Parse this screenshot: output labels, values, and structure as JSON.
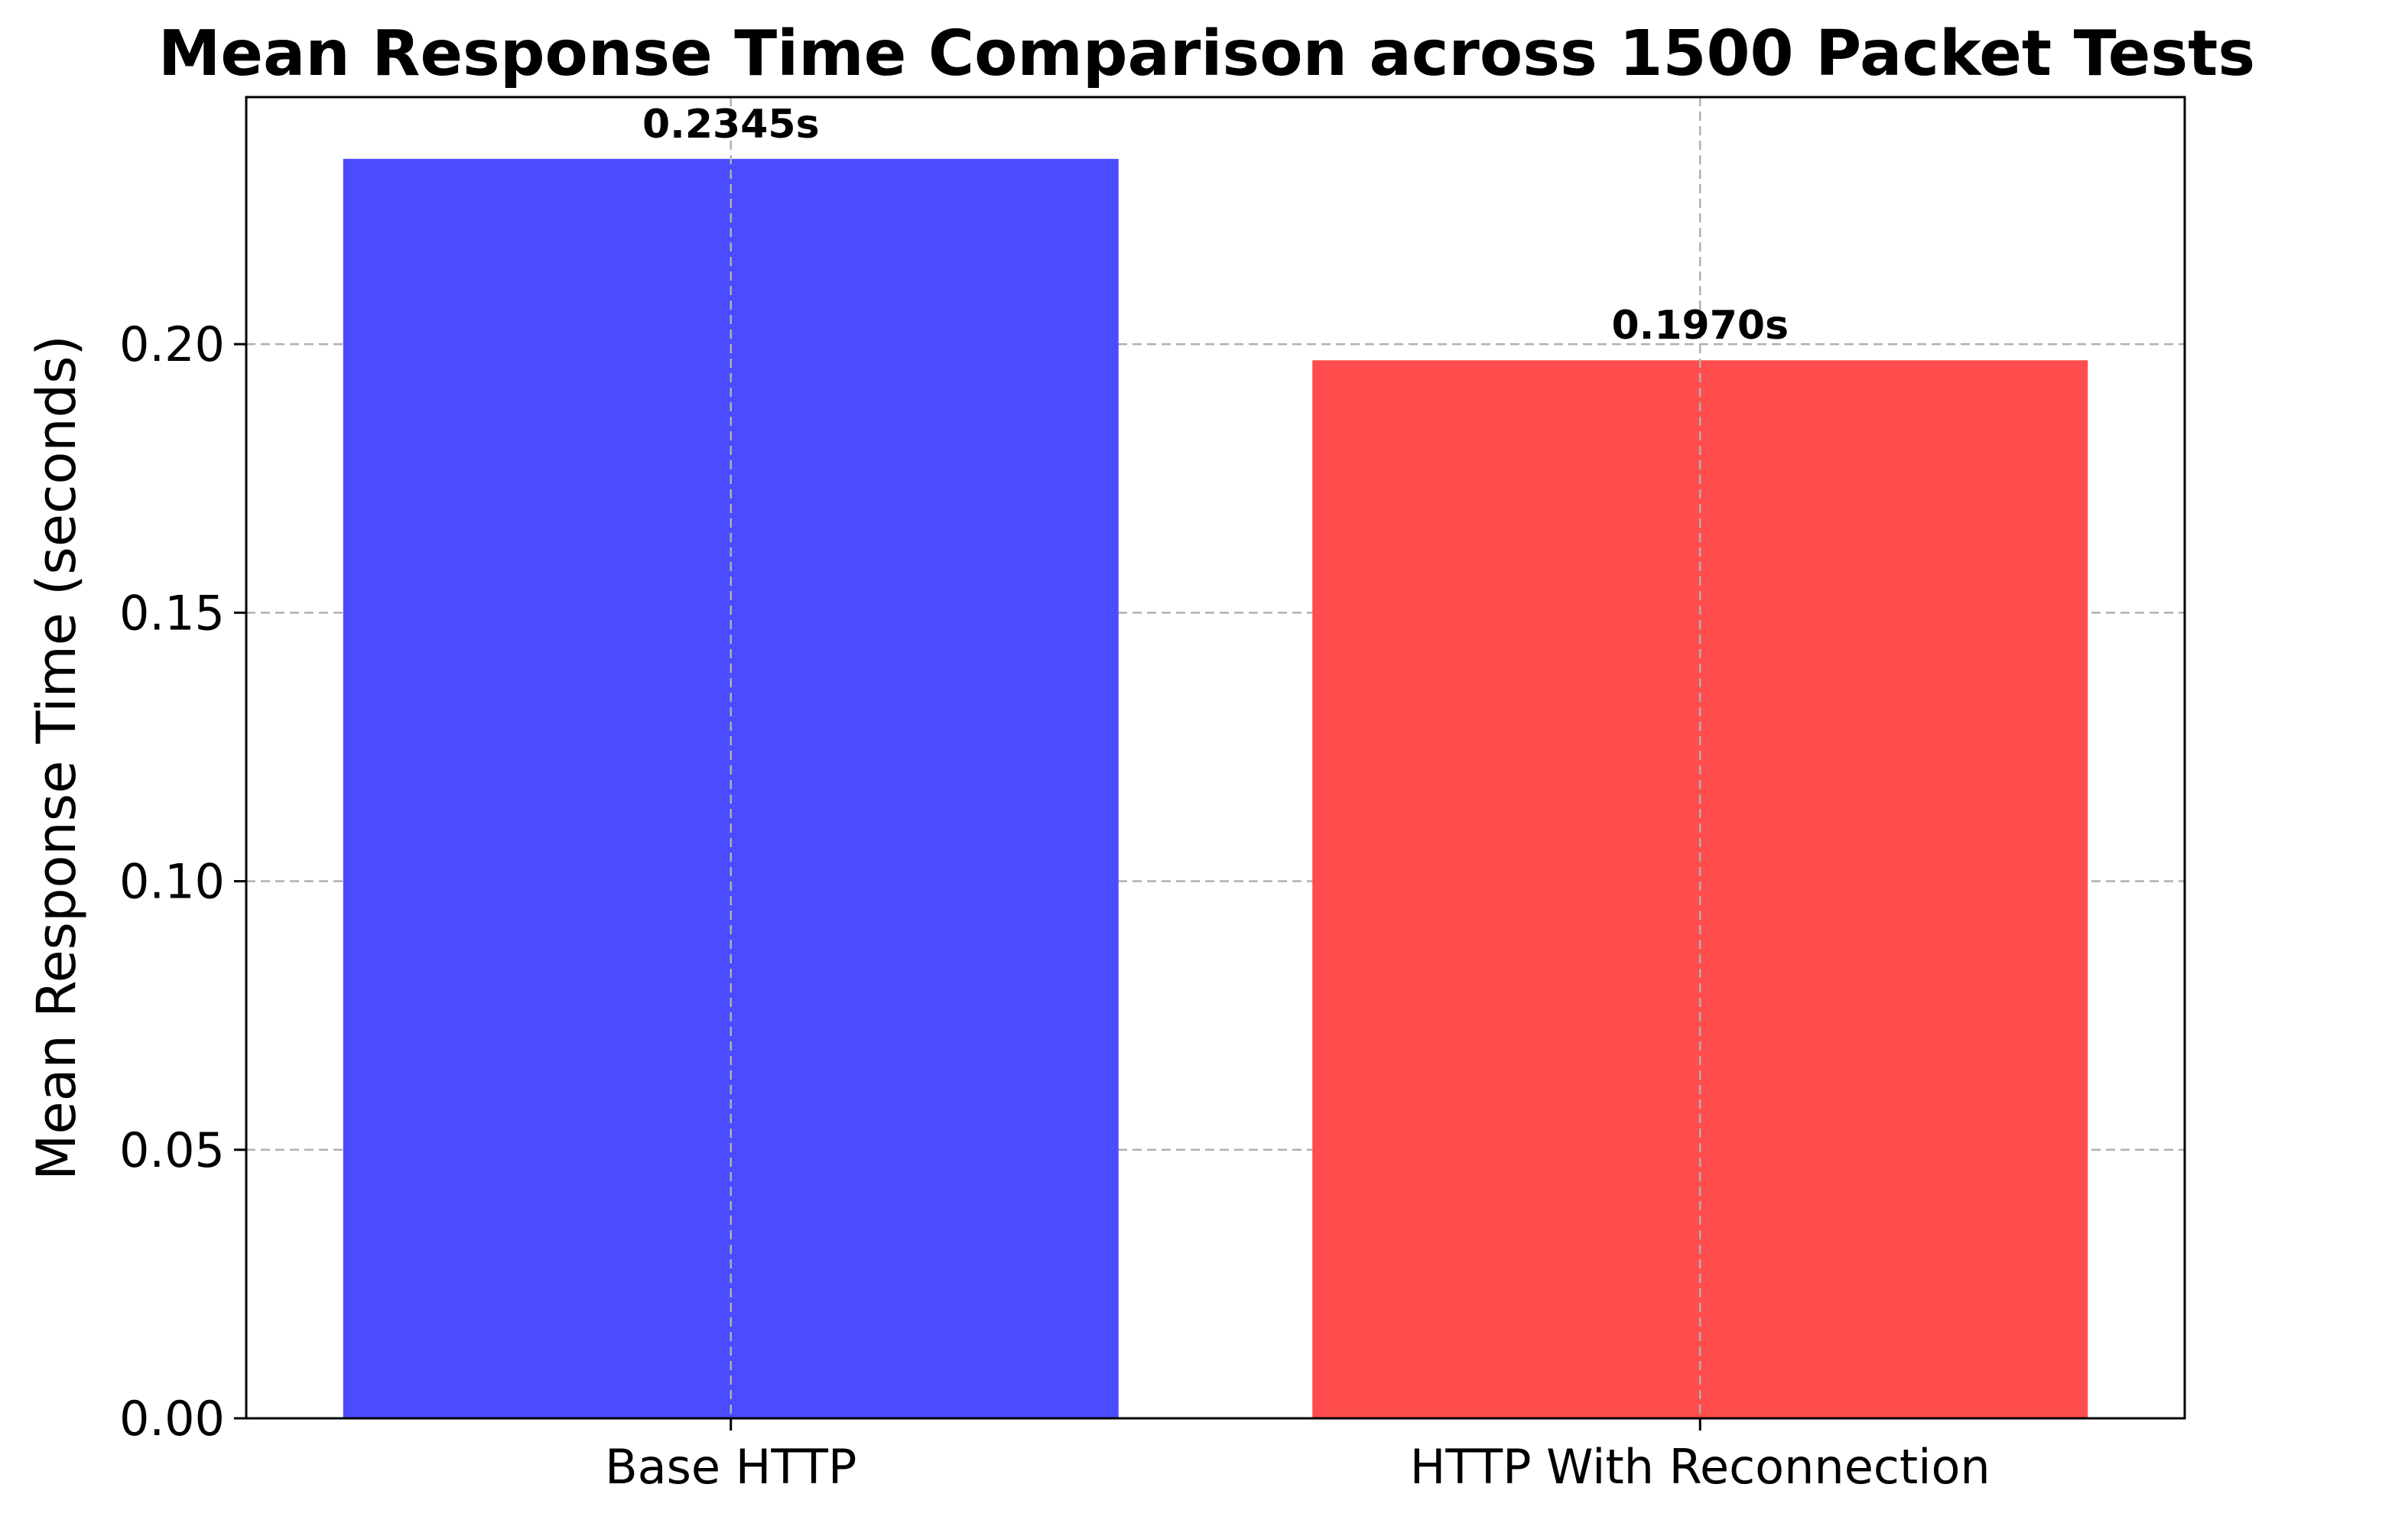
{
  "chart_data": {
    "type": "bar",
    "title": "Mean Response Time Comparison across 1500 Packet Tests",
    "xlabel": "",
    "ylabel": "Mean Response Time (seconds)",
    "categories": [
      "Base HTTP",
      "HTTP With Reconnection"
    ],
    "values": [
      0.2345,
      0.197
    ],
    "data_labels": [
      "0.2345s",
      "0.1970s"
    ],
    "colors": [
      "#4b4bff",
      "#ff4d4d"
    ],
    "ylim": [
      0,
      0.246
    ],
    "yticks": [
      0,
      0.05,
      0.1,
      0.15,
      0.2
    ],
    "ytick_labels": [
      "0.00",
      "0.05",
      "0.10",
      "0.15",
      "0.20"
    ],
    "grid": true,
    "legend": "none"
  }
}
